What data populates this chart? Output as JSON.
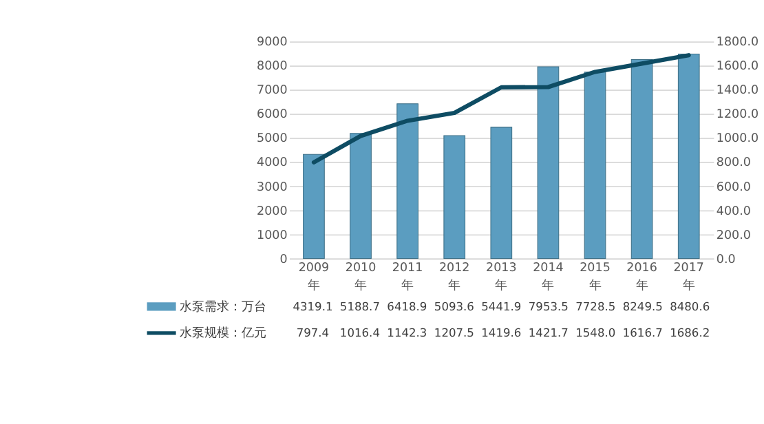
{
  "chart_data": {
    "type": "bar",
    "categories": [
      "2009年",
      "2010年",
      "2011年",
      "2012年",
      "2013年",
      "2014年",
      "2015年",
      "2016年",
      "2017年"
    ],
    "series": [
      {
        "name": "水泵需求：万台",
        "color": "#5b9dc0",
        "values": [
          4319.1,
          5188.7,
          6418.9,
          5093.6,
          5441.9,
          7953.5,
          7728.5,
          8249.5,
          8480.6
        ],
        "value_labels": [
          "4319.1",
          "5188.7",
          "6418.9",
          "5093.6",
          "5441.9",
          "7953.5",
          "7728.5",
          "8249.5",
          "8480.6"
        ]
      },
      {
        "name": "水泵规模：亿元",
        "type": "line",
        "axis": "y2",
        "color": "#0e4c63",
        "line_style": "solid",
        "values": [
          797.4,
          1016.4,
          1142.3,
          1207.5,
          1419.6,
          1421.7,
          1548.0,
          1616.7,
          1686.2
        ],
        "value_labels": [
          "797.4",
          "1016.4",
          "1142.3",
          "1207.5",
          "1419.6",
          "1421.7",
          "1548.0",
          "1616.7",
          "1686.2"
        ]
      }
    ],
    "ylim": [
      0,
      9000
    ],
    "yticks": [
      0,
      1000,
      2000,
      3000,
      4000,
      5000,
      6000,
      7000,
      8000,
      9000
    ],
    "y2lim": [
      0,
      1800
    ],
    "y2ticks": [
      {
        "value": 0,
        "label": "0.0"
      },
      {
        "value": 200,
        "label": "200.0"
      },
      {
        "value": 400,
        "label": "400.0"
      },
      {
        "value": 600,
        "label": "600.0"
      },
      {
        "value": 800,
        "label": "800.0"
      },
      {
        "value": 1000,
        "label": "1000.0"
      },
      {
        "value": 1200,
        "label": "1200.0"
      },
      {
        "value": 1400,
        "label": "1400.0"
      },
      {
        "value": 1600,
        "label": "1600.0"
      },
      {
        "value": 1800,
        "label": "1800.0"
      }
    ],
    "grid": "y",
    "legend": "bottom left"
  }
}
